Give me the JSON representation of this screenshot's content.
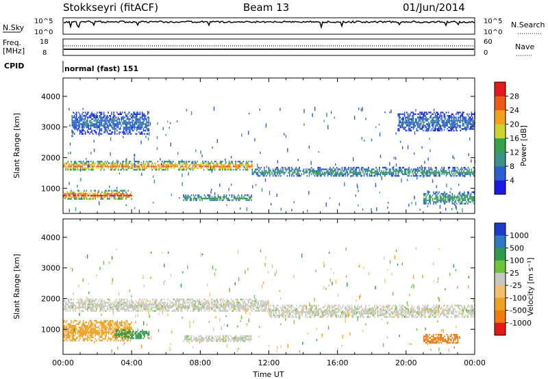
{
  "header": {
    "station": "Stokkseyri (fitACF)",
    "beam": "Beam 13",
    "date": "01/Jun/2014"
  },
  "status": {
    "nsky_label": "N.Sky",
    "nsky_ticks": [
      "10^5",
      "10^0"
    ],
    "nsearch_label": "N.Search",
    "nsearch_ticks": [
      "10^5",
      "10^0"
    ],
    "freq_label": "Freq.",
    "freq_unit": "[MHz]",
    "freq_ticks": [
      "18",
      "8"
    ],
    "nave_label": "Nave",
    "nave_ticks": [
      "60",
      "0"
    ],
    "cpid_label": "CPID",
    "cpid_value": "normal (fast) 151"
  },
  "chart_data": [
    {
      "type": "heatmap",
      "panel": "power",
      "ylabel": "Slant Range [km]",
      "xlabel": "",
      "xlim": [
        0,
        24
      ],
      "ylim": [
        180,
        4600
      ],
      "ytick_labels": [
        "1000",
        "2000",
        "3000",
        "4000"
      ],
      "yticks": [
        1000,
        2000,
        3000,
        4000
      ],
      "colorbar": {
        "label": "Power [dB]",
        "ticks": [
          "4",
          "8",
          "12",
          "16",
          "20",
          "24",
          "28"
        ],
        "colors": [
          "#1a1ae6",
          "#2e5fd1",
          "#3d9188",
          "#35a04a",
          "#c9d22e",
          "#f2a01e",
          "#ee5a18",
          "#e11a1a"
        ]
      },
      "echo_bands": [
        {
          "t": [
            0.0,
            4.0
          ],
          "range": [
            650,
            950
          ],
          "power_db": 28
        },
        {
          "t": [
            0.0,
            11.0
          ],
          "range": [
            1600,
            1900
          ],
          "power_db": 24
        },
        {
          "t": [
            11.0,
            24.0
          ],
          "range": [
            1400,
            1700
          ],
          "power_db": 10
        },
        {
          "t": [
            0.5,
            5.0
          ],
          "range": [
            2800,
            3500
          ],
          "power_db": 6
        },
        {
          "t": [
            19.5,
            24.0
          ],
          "range": [
            2900,
            3500
          ],
          "power_db": 6
        },
        {
          "t": [
            7.0,
            11.0
          ],
          "range": [
            600,
            800
          ],
          "power_db": 12
        },
        {
          "t": [
            21.0,
            24.0
          ],
          "range": [
            500,
            900
          ],
          "power_db": 12
        }
      ]
    },
    {
      "type": "heatmap",
      "panel": "velocity",
      "ylabel": "Slant Range [km]",
      "xlabel": "Time UT",
      "xlim": [
        0,
        24
      ],
      "ylim": [
        180,
        4600
      ],
      "xtick_labels": [
        "00:00",
        "04:00",
        "08:00",
        "12:00",
        "16:00",
        "20:00",
        "00:00"
      ],
      "xticks": [
        0,
        4,
        8,
        12,
        16,
        20,
        24
      ],
      "ytick_labels": [
        "1000",
        "2000",
        "3000",
        "4000"
      ],
      "yticks": [
        1000,
        2000,
        3000,
        4000
      ],
      "colorbar": {
        "label": "Velocity [m s⁻¹]",
        "ticks": [
          "1000",
          "500",
          "100",
          "25",
          "-25",
          "-100",
          "-500",
          "-1000"
        ],
        "colors": [
          "#1a3cc8",
          "#2f79c2",
          "#2f9a4a",
          "#6cc43a",
          "#c8c8c0",
          "#f2c070",
          "#f0a020",
          "#ee7a10",
          "#e01818"
        ]
      },
      "echo_bands": [
        {
          "t": [
            0.0,
            12.0
          ],
          "range": [
            1600,
            2000
          ],
          "velocity_ms": 0
        },
        {
          "t": [
            12.0,
            24.0
          ],
          "range": [
            1400,
            1800
          ],
          "velocity_ms": 0
        },
        {
          "t": [
            0.0,
            4.0
          ],
          "range": [
            650,
            1300
          ],
          "velocity_ms": -200
        },
        {
          "t": [
            3.0,
            5.0
          ],
          "range": [
            700,
            1000
          ],
          "velocity_ms": 150
        },
        {
          "t": [
            7.0,
            11.0
          ],
          "range": [
            600,
            800
          ],
          "velocity_ms": 0
        },
        {
          "t": [
            21.0,
            23.0
          ],
          "range": [
            550,
            850
          ],
          "velocity_ms": -600
        }
      ]
    }
  ]
}
